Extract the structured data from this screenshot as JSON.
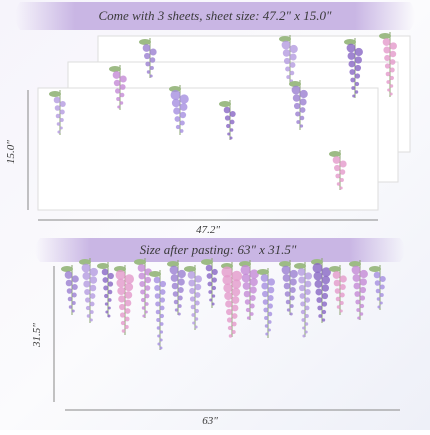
{
  "header": {
    "title": "Come with 3 sheets, sheet size: 47.2\" x 15.0\""
  },
  "sheets": {
    "height_label": "15.0\"",
    "width_label": "47.2\""
  },
  "after": {
    "title": "Size after pasting: 63\" x 31.5\"",
    "height_label": "31.5\"",
    "width_label": "63\""
  }
}
